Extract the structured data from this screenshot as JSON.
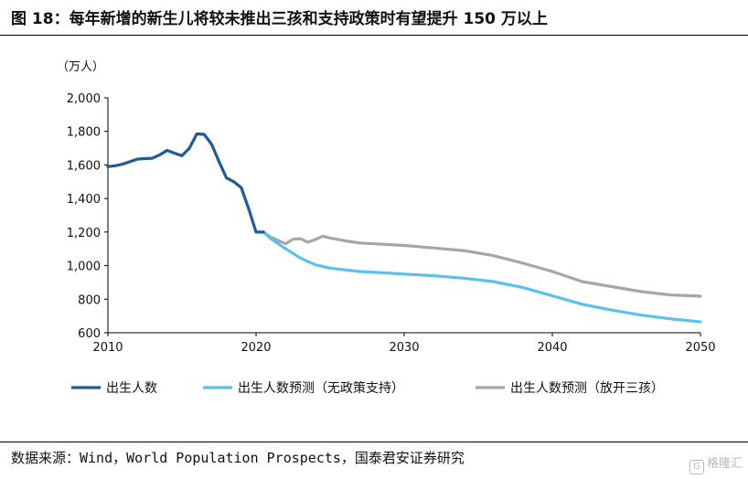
{
  "title": "图 18：每年新增的新生儿将较未推出三孩和支持政策时有望提升 150 万以上",
  "source": "数据来源：Wind，World Population Prospects，国泰君安证券研究",
  "watermark": "格隆汇",
  "chart_data": {
    "type": "line",
    "ylabel": "（万人）",
    "xlim": [
      2010,
      2050
    ],
    "ylim": [
      600,
      2000
    ],
    "xticks": [
      2010,
      2020,
      2030,
      2040,
      2050
    ],
    "yticks": [
      600,
      800,
      1000,
      1200,
      1400,
      1600,
      1800,
      2000
    ],
    "ytick_labels": [
      "600",
      "800",
      "1,000",
      "1,200",
      "1,400",
      "1,600",
      "1,800",
      "2,000"
    ],
    "grid": false,
    "legend_position": "bottom",
    "series": [
      {
        "name": "出生人数",
        "color": "#1f5b96",
        "x": [
          2010,
          2010.5,
          2011,
          2011.5,
          2012,
          2012.5,
          2013,
          2013.5,
          2014,
          2014.5,
          2015,
          2015.5,
          2016,
          2016.5,
          2017,
          2017.5,
          2018,
          2018.5,
          2019,
          2019.5,
          2020,
          2020.5
        ],
        "y": [
          1590,
          1595,
          1605,
          1620,
          1635,
          1638,
          1640,
          1660,
          1687,
          1670,
          1655,
          1700,
          1785,
          1782,
          1723,
          1620,
          1523,
          1500,
          1465,
          1340,
          1200,
          1200
        ]
      },
      {
        "name": "出生人数预测（无政策支持）",
        "color": "#5bc0eb",
        "x": [
          2020.5,
          2021,
          2022,
          2023,
          2024,
          2025,
          2026,
          2027,
          2028,
          2030,
          2032,
          2034,
          2036,
          2038,
          2040,
          2042,
          2044,
          2046,
          2048,
          2050
        ],
        "y": [
          1200,
          1160,
          1100,
          1045,
          1005,
          985,
          975,
          965,
          960,
          950,
          940,
          925,
          905,
          870,
          820,
          770,
          735,
          705,
          683,
          665
        ]
      },
      {
        "name": "出生人数预测（放开三孩）",
        "color": "#a6a6a6",
        "x": [
          2020.5,
          2021,
          2022,
          2022.5,
          2023,
          2023.5,
          2024,
          2024.5,
          2025,
          2026,
          2027,
          2028,
          2030,
          2032,
          2034,
          2036,
          2038,
          2040,
          2042,
          2044,
          2046,
          2048,
          2050
        ],
        "y": [
          1200,
          1170,
          1130,
          1158,
          1160,
          1140,
          1155,
          1175,
          1165,
          1148,
          1135,
          1130,
          1120,
          1105,
          1090,
          1060,
          1015,
          965,
          905,
          875,
          845,
          825,
          818
        ]
      }
    ]
  }
}
